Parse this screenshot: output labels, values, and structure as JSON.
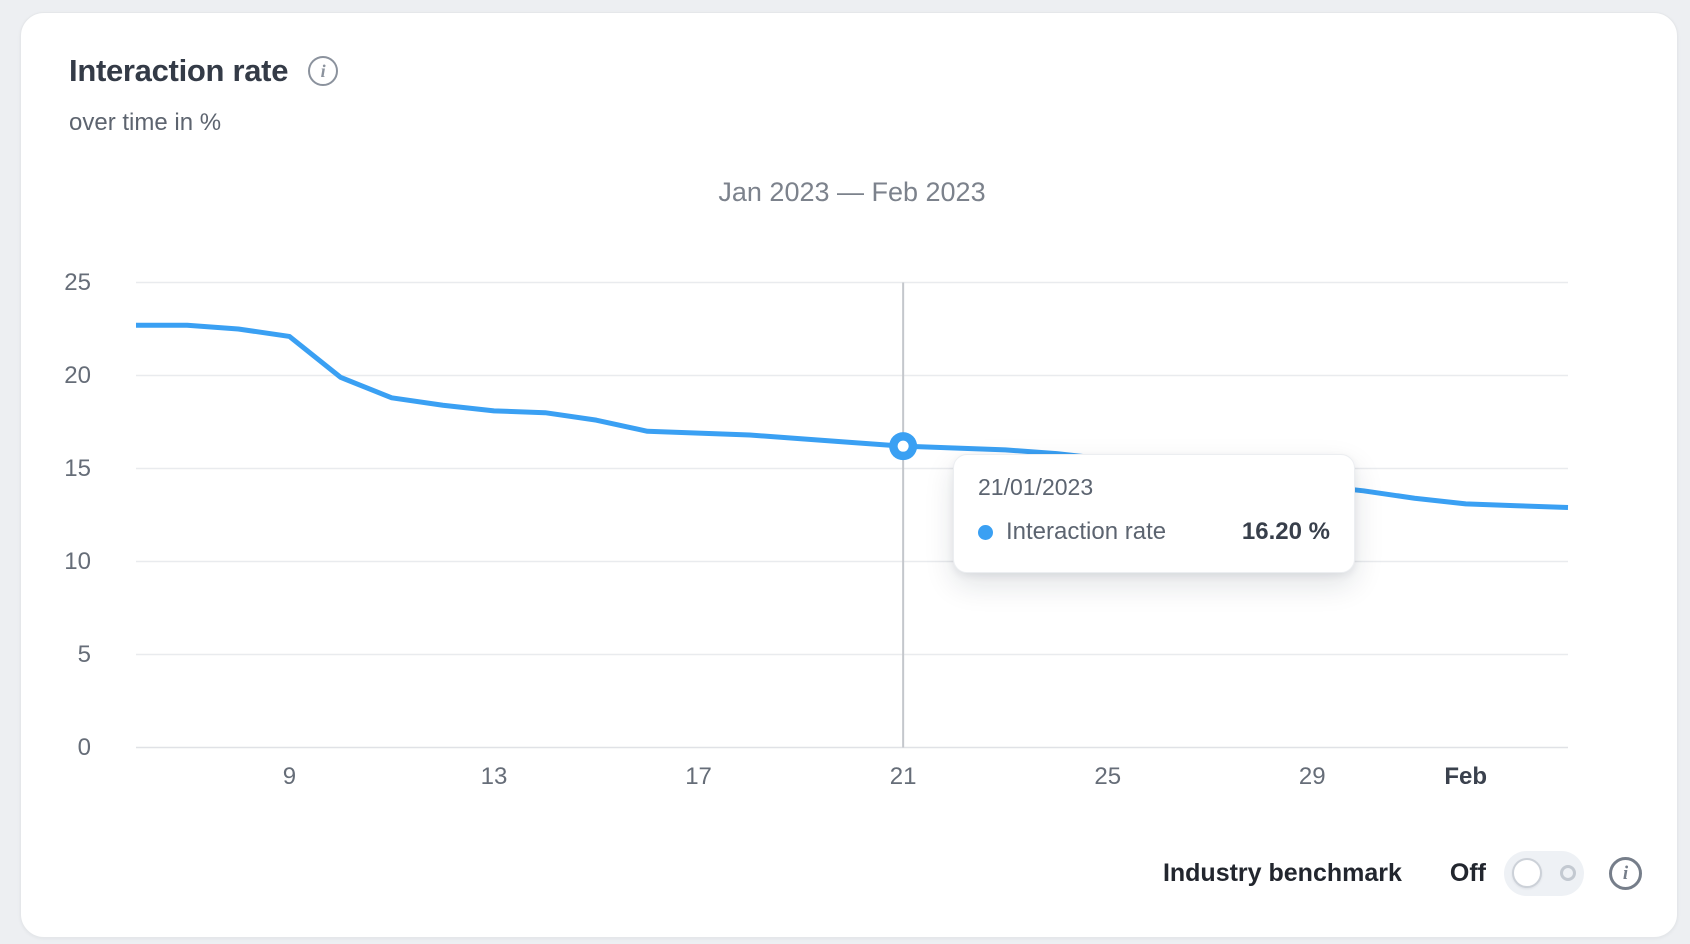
{
  "header": {
    "title": "Interaction rate",
    "subtitle": "over time in %"
  },
  "range_label": "Jan 2023 — Feb 2023",
  "chart_data": {
    "type": "line",
    "title": "Jan 2023 — Feb 2023",
    "ylabel": "Interaction rate in %",
    "ylim": [
      0,
      25
    ],
    "yticks": [
      0,
      5,
      10,
      15,
      20,
      25
    ],
    "grid": true,
    "legend_position": "none",
    "dates": [
      "06/01/2023",
      "07/01/2023",
      "08/01/2023",
      "09/01/2023",
      "10/01/2023",
      "11/01/2023",
      "12/01/2023",
      "13/01/2023",
      "14/01/2023",
      "15/01/2023",
      "16/01/2023",
      "17/01/2023",
      "18/01/2023",
      "19/01/2023",
      "20/01/2023",
      "21/01/2023",
      "22/01/2023",
      "23/01/2023",
      "24/01/2023",
      "25/01/2023",
      "26/01/2023",
      "27/01/2023",
      "28/01/2023",
      "29/01/2023",
      "30/01/2023",
      "31/01/2023",
      "01/02/2023",
      "02/02/2023",
      "03/02/2023"
    ],
    "series": [
      {
        "name": "Interaction rate",
        "color": "#3aa0f3",
        "values": [
          22.7,
          22.7,
          22.5,
          22.1,
          19.9,
          18.8,
          18.4,
          18.1,
          18.0,
          17.6,
          17.0,
          16.9,
          16.8,
          16.6,
          16.4,
          16.2,
          16.1,
          16.0,
          15.8,
          15.5,
          15.1,
          14.7,
          14.4,
          14.1,
          13.8,
          13.4,
          13.1,
          13.0,
          12.9
        ]
      }
    ],
    "xticks": [
      {
        "label": "9",
        "index": 3,
        "bold": false
      },
      {
        "label": "13",
        "index": 7,
        "bold": false
      },
      {
        "label": "17",
        "index": 11,
        "bold": false
      },
      {
        "label": "21",
        "index": 15,
        "bold": false
      },
      {
        "label": "25",
        "index": 19,
        "bold": false
      },
      {
        "label": "29",
        "index": 23,
        "bold": false
      },
      {
        "label": "Feb",
        "index": 26,
        "bold": true
      }
    ],
    "highlight": {
      "index": 15,
      "date": "21/01/2023",
      "value": 16.2
    }
  },
  "tooltip": {
    "date": "21/01/2023",
    "series_label": "Interaction rate",
    "value": "16.20 %"
  },
  "benchmark": {
    "label": "Industry benchmark",
    "state": "Off"
  },
  "icons": {
    "header_info": "i",
    "benchmark_info": "i"
  },
  "colors": {
    "line": "#3aa0f3",
    "grid": "#e9ebee",
    "axis": "#e0e2e6",
    "crosshair": "#c4c7cc",
    "marker_center": "#ffffff"
  }
}
